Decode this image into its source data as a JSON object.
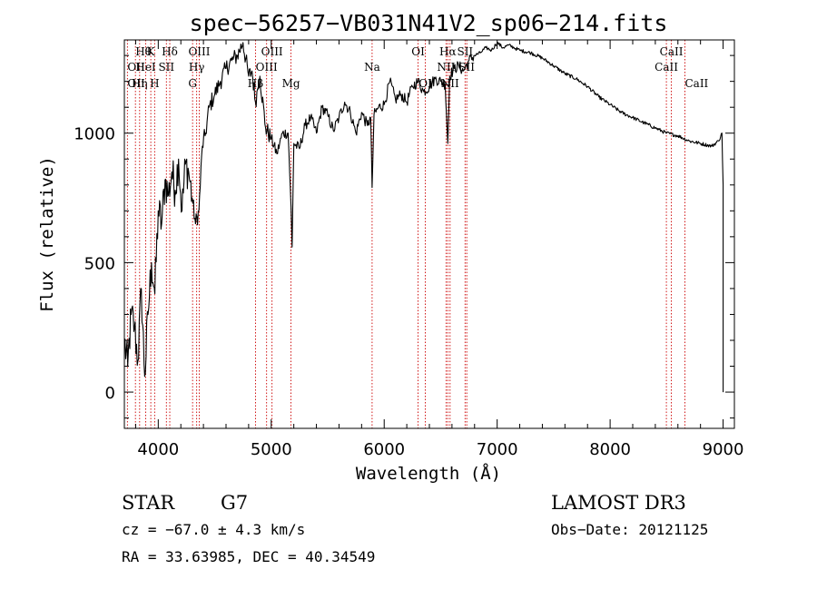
{
  "chart_data": {
    "type": "line",
    "title": "spec−56257−VB031N41V2_sp06−214.fits",
    "xlabel": "Wavelength (Å)",
    "ylabel": "Flux (relative)",
    "xlim": [
      3700,
      9100
    ],
    "ylim": [
      -140,
      1360
    ],
    "xticks": [
      4000,
      5000,
      6000,
      7000,
      8000,
      9000
    ],
    "yticks": [
      0,
      500,
      1000
    ],
    "grid": false,
    "series": [
      {
        "name": "flux",
        "x": [
          3700,
          3730,
          3760,
          3790,
          3820,
          3850,
          3880,
          3910,
          3940,
          3970,
          4000,
          4030,
          4060,
          4090,
          4120,
          4150,
          4180,
          4210,
          4240,
          4270,
          4300,
          4330,
          4360,
          4390,
          4420,
          4450,
          4500,
          4550,
          4600,
          4650,
          4700,
          4750,
          4800,
          4830,
          4860,
          4880,
          4900,
          4950,
          5000,
          5050,
          5100,
          5150,
          5170,
          5185,
          5200,
          5250,
          5300,
          5350,
          5400,
          5450,
          5500,
          5550,
          5600,
          5650,
          5700,
          5750,
          5800,
          5850,
          5880,
          5893,
          5910,
          5950,
          6000,
          6050,
          6100,
          6150,
          6200,
          6250,
          6300,
          6350,
          6400,
          6450,
          6500,
          6540,
          6563,
          6580,
          6620,
          6660,
          6700,
          6750,
          6800,
          6850,
          6900,
          6950,
          7000,
          7050,
          7100,
          7150,
          7200,
          7300,
          7400,
          7500,
          7600,
          7700,
          7800,
          7900,
          8000,
          8100,
          8200,
          8300,
          8400,
          8500,
          8600,
          8700,
          8800,
          8900,
          8960,
          8990,
          9000,
          9000
        ],
        "y": [
          200,
          100,
          300,
          250,
          120,
          400,
          60,
          300,
          500,
          380,
          700,
          650,
          820,
          760,
          850,
          780,
          900,
          700,
          880,
          850,
          750,
          650,
          700,
          950,
          1000,
          1100,
          1150,
          1200,
          1250,
          1280,
          1300,
          1350,
          1220,
          1240,
          1120,
          1170,
          1220,
          1020,
          980,
          920,
          1000,
          1000,
          780,
          560,
          960,
          940,
          1030,
          1060,
          1000,
          1100,
          1070,
          1010,
          1060,
          1120,
          1080,
          1000,
          1080,
          1030,
          1060,
          790,
          1070,
          1100,
          1110,
          1200,
          1130,
          1150,
          1120,
          1180,
          1200,
          1160,
          1180,
          1210,
          1200,
          1190,
          960,
          1220,
          1250,
          1260,
          1240,
          1280,
          1300,
          1310,
          1330,
          1320,
          1350,
          1330,
          1340,
          1330,
          1320,
          1310,
          1290,
          1260,
          1230,
          1210,
          1180,
          1140,
          1110,
          1080,
          1060,
          1040,
          1020,
          1000,
          990,
          970,
          960,
          950,
          970,
          1000,
          800,
          0
        ],
        "color": "#000000"
      }
    ],
    "lines": [
      {
        "label": "Hθ",
        "x": 3798,
        "row": 0,
        "anchor": "start"
      },
      {
        "label": "K",
        "x": 3934,
        "row": 0,
        "anchor": "middle"
      },
      {
        "label": "Hδ",
        "x": 4102,
        "row": 0,
        "anchor": "middle"
      },
      {
        "label": "OIII",
        "x": 4363,
        "row": 0,
        "anchor": "middle"
      },
      {
        "label": "OIII",
        "x": 5007,
        "row": 0,
        "anchor": "middle"
      },
      {
        "label": "OI",
        "x": 6300,
        "row": 0,
        "anchor": "middle"
      },
      {
        "label": "Hα",
        "x": 6563,
        "row": 0,
        "anchor": "middle"
      },
      {
        "label": "SII",
        "x": 6716,
        "row": 0,
        "anchor": "middle"
      },
      {
        "label": "CaII",
        "x": 8542,
        "row": 0,
        "anchor": "middle"
      },
      {
        "label": "OII",
        "x": 3727,
        "row": 1,
        "anchor": "start"
      },
      {
        "label": "HeI",
        "x": 3889,
        "row": 1,
        "anchor": "middle"
      },
      {
        "label": "SII",
        "x": 4072,
        "row": 1,
        "anchor": "middle"
      },
      {
        "label": "Hγ",
        "x": 4340,
        "row": 1,
        "anchor": "middle"
      },
      {
        "label": "OIII",
        "x": 4959,
        "row": 1,
        "anchor": "middle"
      },
      {
        "label": "Na",
        "x": 5893,
        "row": 1,
        "anchor": "middle"
      },
      {
        "label": "NII",
        "x": 6548,
        "row": 1,
        "anchor": "middle"
      },
      {
        "label": "SII",
        "x": 6731,
        "row": 1,
        "anchor": "middle"
      },
      {
        "label": "CaII",
        "x": 8498,
        "row": 1,
        "anchor": "middle"
      },
      {
        "label": "OII",
        "x": 3727,
        "row": 2,
        "anchor": "start"
      },
      {
        "label": "Hη",
        "x": 3835,
        "row": 2,
        "anchor": "middle"
      },
      {
        "label": "H",
        "x": 3968,
        "row": 2,
        "anchor": "middle"
      },
      {
        "label": "G",
        "x": 4304,
        "row": 2,
        "anchor": "middle"
      },
      {
        "label": "Hβ",
        "x": 4861,
        "row": 2,
        "anchor": "middle"
      },
      {
        "label": "Mg",
        "x": 5175,
        "row": 2,
        "anchor": "middle"
      },
      {
        "label": "OI",
        "x": 6364,
        "row": 2,
        "anchor": "middle"
      },
      {
        "label": "NII",
        "x": 6583,
        "row": 2,
        "anchor": "middle"
      },
      {
        "label": "CaII",
        "x": 8662,
        "row": 2,
        "anchor": "start"
      }
    ],
    "line_color": "#cc0000"
  },
  "info": {
    "obj_class": "STAR",
    "subclass": "G7",
    "survey": "LAMOST DR3",
    "cz": "cz = −67.0 ± 4.3 km/s",
    "obs_date": "Obs−Date: 20121125",
    "radec": "RA =  33.63985, DEC =  40.34549"
  }
}
